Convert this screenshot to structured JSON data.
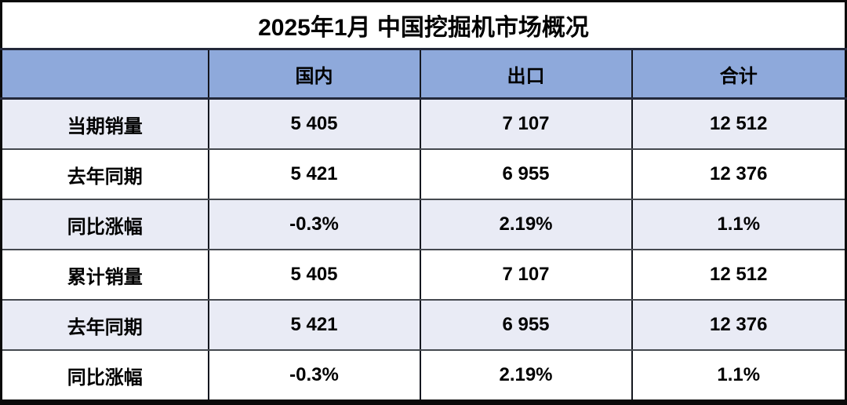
{
  "title": "2025年1月 中国挖掘机市场概况",
  "table": {
    "columns": [
      "",
      "国内",
      "出口",
      "合计"
    ],
    "rows": [
      {
        "label": "当期销量",
        "values": [
          "5 405",
          "7 107",
          "12 512"
        ]
      },
      {
        "label": "去年同期",
        "values": [
          "5 421",
          "6 955",
          "12 376"
        ]
      },
      {
        "label": "同比涨幅",
        "values": [
          "-0.3%",
          "2.19%",
          "1.1%"
        ]
      },
      {
        "label": "累计销量",
        "values": [
          "5 405",
          "7 107",
          "12 512"
        ]
      },
      {
        "label": "去年同期",
        "values": [
          "5 421",
          "6 955",
          "12 376"
        ]
      },
      {
        "label": "同比涨幅",
        "values": [
          "-0.3%",
          "2.19%",
          "1.1%"
        ]
      }
    ]
  },
  "colors": {
    "header_bg": "#8EA9DB",
    "band_row_bg": "#E9EBF5",
    "plain_row_bg": "#FFFFFF",
    "border": "#0A0A0A",
    "text": "#000000"
  },
  "chart_data": {
    "type": "table",
    "title": "2025年1月 中国挖掘机市场概况",
    "columns": [
      "国内",
      "出口",
      "合计"
    ],
    "row_labels": [
      "当期销量",
      "去年同期",
      "同比涨幅",
      "累计销量",
      "去年同期",
      "同比涨幅"
    ],
    "rows": [
      {
        "label": "当期销量",
        "国内": 5405,
        "出口": 7107,
        "合计": 12512
      },
      {
        "label": "去年同期",
        "国内": 5421,
        "出口": 6955,
        "合计": 12376
      },
      {
        "label": "同比涨幅",
        "国内": "-0.3%",
        "出口": "2.19%",
        "合计": "1.1%"
      },
      {
        "label": "累计销量",
        "国内": 5405,
        "出口": 7107,
        "合计": 12512
      },
      {
        "label": "去年同期",
        "国内": 5421,
        "出口": 6955,
        "合计": 12376
      },
      {
        "label": "同比涨幅",
        "国内": "-0.3%",
        "出口": "2.19%",
        "合计": "1.1%"
      }
    ]
  }
}
